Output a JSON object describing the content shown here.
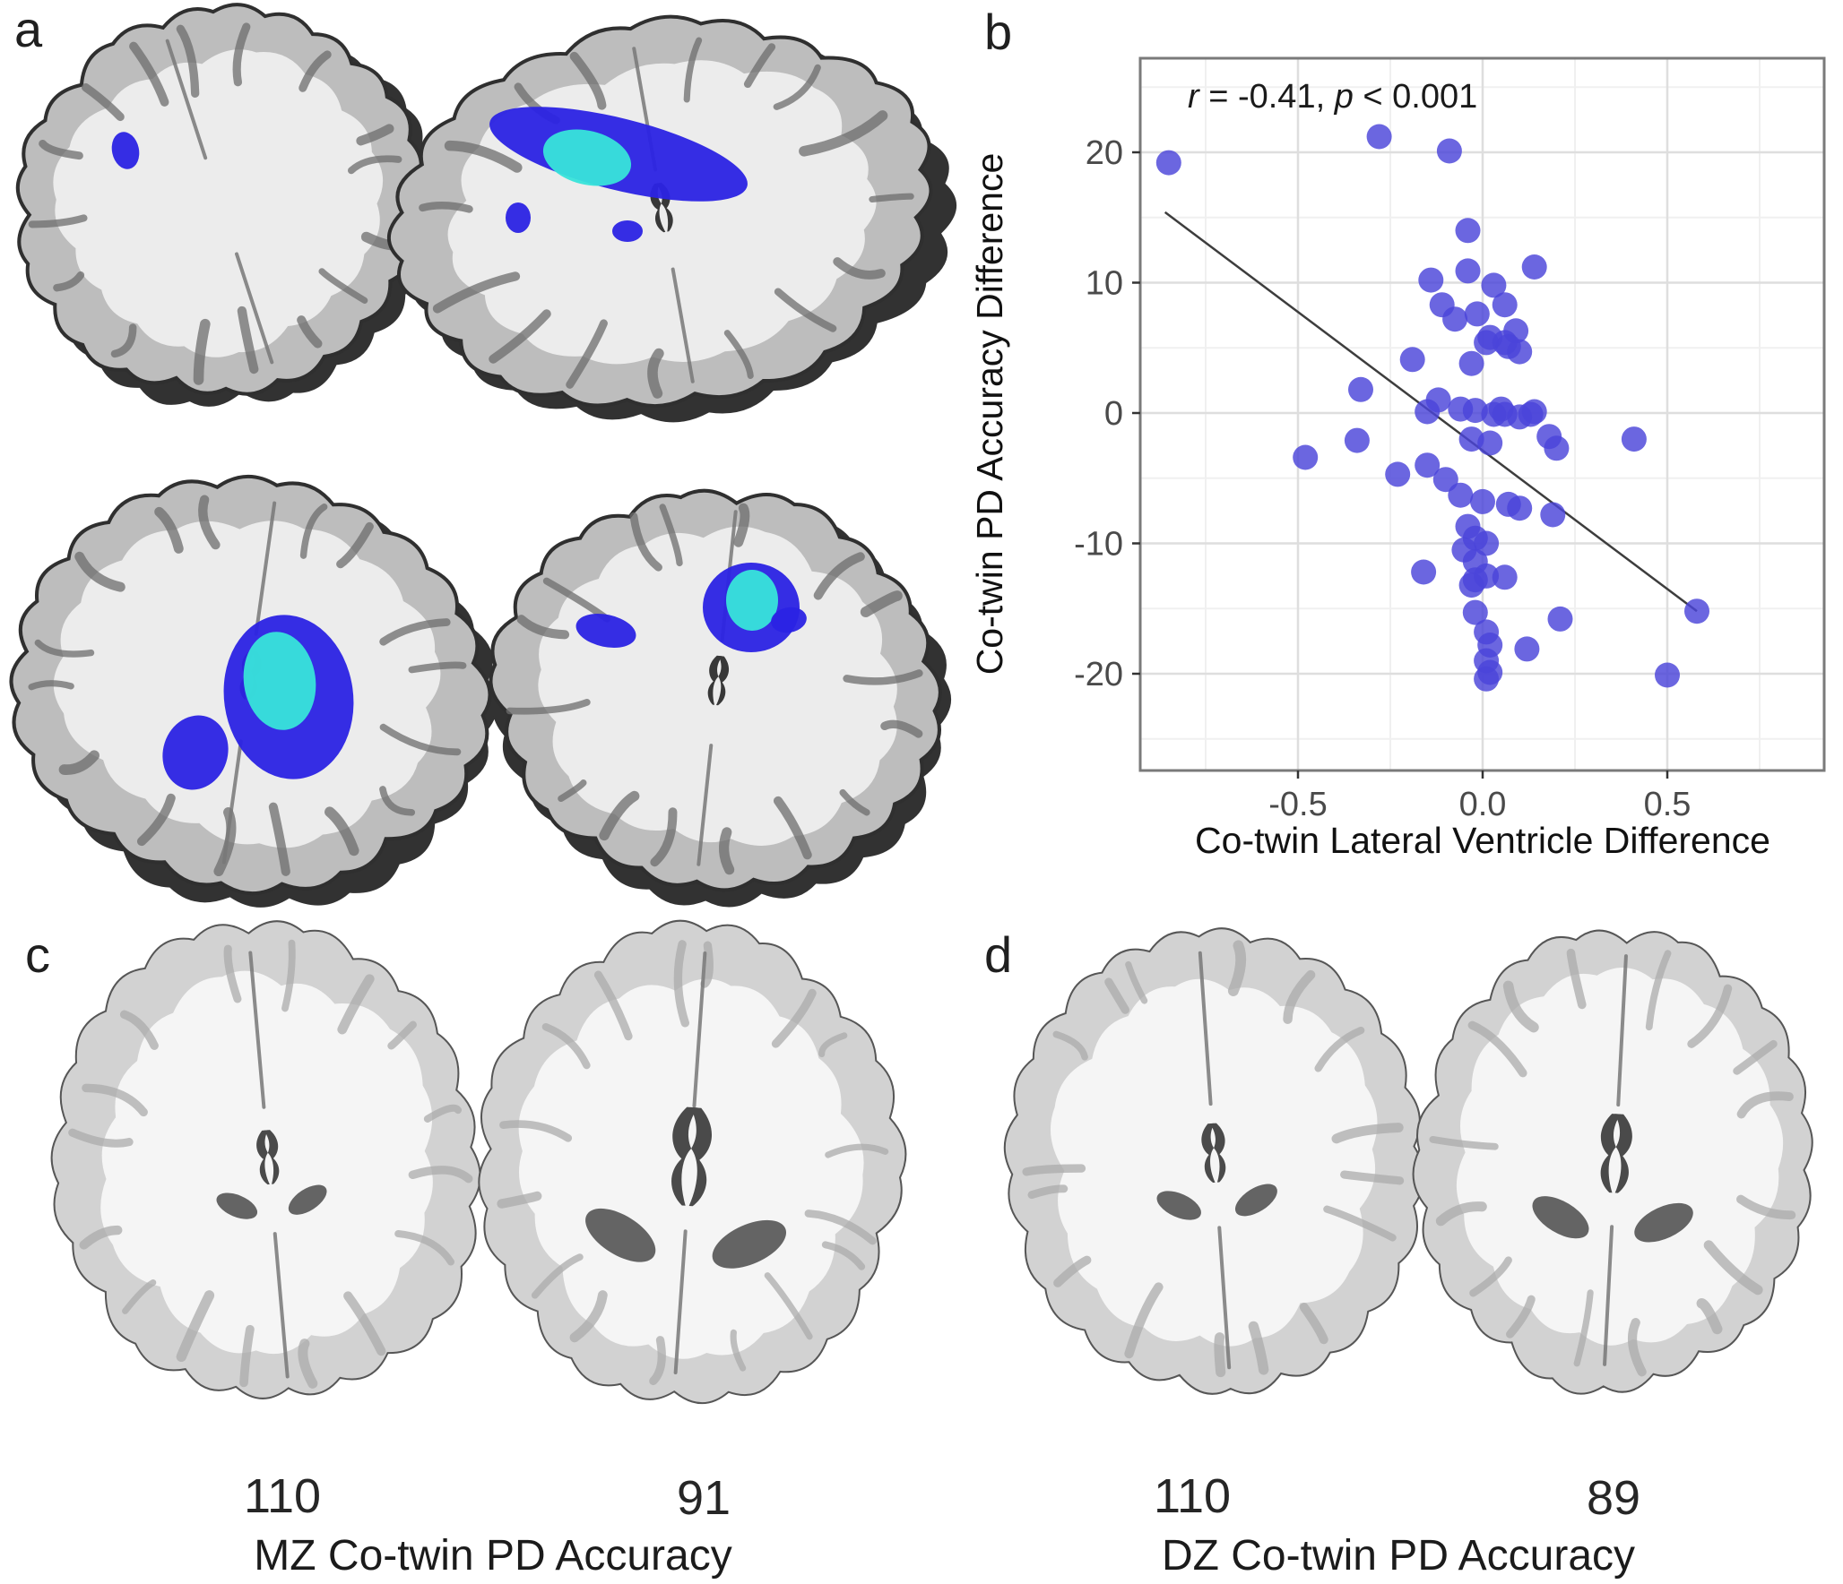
{
  "figure": {
    "panels": [
      {
        "id": "a",
        "label": "a"
      },
      {
        "id": "b",
        "label": "b"
      },
      {
        "id": "c",
        "label": "c",
        "values": [
          "110",
          "91"
        ],
        "caption": "MZ Co-twin PD Accuracy"
      },
      {
        "id": "d",
        "label": "d",
        "values": [
          "110",
          "89"
        ],
        "caption": "DZ Co-twin PD Accuracy"
      }
    ]
  },
  "annotation": {
    "r_sym": "r",
    "r_val": " = -0.41, ",
    "p_sym": "p",
    "p_val": " < 0.001"
  },
  "colors": {
    "cluster_blue": "#2B23E4",
    "cluster_cyan": "#38E4DA",
    "dot": "#4A44D9",
    "regression_line": "#3D3D3D",
    "grid_major": "#DEDEDE",
    "grid_minor": "#F0F0F0",
    "panel_border": "#7A7A7A",
    "tick_text": "#4A4A4A"
  },
  "chart_data": {
    "type": "scatter",
    "title": "",
    "annotation": "r = -0.41, p < 0.001",
    "xlabel": "Co-twin Lateral Ventricle Difference",
    "ylabel": "Co-twin PD Accuracy Difference",
    "xlim": [
      -0.93,
      0.93
    ],
    "ylim": [
      -27.4,
      27.2
    ],
    "xticks": [
      -0.5,
      0.0,
      0.5
    ],
    "yticks": [
      -20,
      -10,
      0,
      10,
      20
    ],
    "xtick_labels": [
      "-0.5",
      "0.0",
      "0.5"
    ],
    "ytick_labels": [
      "-20",
      "-10",
      "0",
      "10",
      "20"
    ],
    "grid": true,
    "legend": false,
    "points": [
      [
        -0.85,
        19.2
      ],
      [
        -0.28,
        21.2
      ],
      [
        -0.09,
        20.1
      ],
      [
        -0.04,
        14.0
      ],
      [
        0.14,
        11.2
      ],
      [
        -0.04,
        10.9
      ],
      [
        -0.14,
        10.2
      ],
      [
        0.03,
        9.8
      ],
      [
        -0.11,
        8.3
      ],
      [
        0.06,
        8.3
      ],
      [
        -0.075,
        7.2
      ],
      [
        -0.015,
        7.6
      ],
      [
        0.09,
        6.3
      ],
      [
        0.02,
        5.8
      ],
      [
        0.06,
        5.4
      ],
      [
        0.01,
        5.4
      ],
      [
        0.07,
        5.1
      ],
      [
        0.1,
        4.7
      ],
      [
        -0.19,
        4.1
      ],
      [
        -0.03,
        3.8
      ],
      [
        -0.33,
        1.8
      ],
      [
        -0.12,
        1.0
      ],
      [
        0.05,
        0.3
      ],
      [
        -0.06,
        0.3
      ],
      [
        -0.02,
        0.2
      ],
      [
        0.03,
        -0.1
      ],
      [
        0.06,
        -0.1
      ],
      [
        0.1,
        -0.3
      ],
      [
        0.14,
        0.1
      ],
      [
        -0.15,
        0.1
      ],
      [
        0.13,
        -0.1
      ],
      [
        -0.48,
        -3.4
      ],
      [
        -0.34,
        -2.1
      ],
      [
        -0.03,
        -2.0
      ],
      [
        0.02,
        -2.3
      ],
      [
        0.18,
        -1.8
      ],
      [
        0.2,
        -2.7
      ],
      [
        0.41,
        -2.0
      ],
      [
        -0.15,
        -4.0
      ],
      [
        -0.23,
        -4.7
      ],
      [
        -0.1,
        -5.1
      ],
      [
        -0.06,
        -6.3
      ],
      [
        0.0,
        -6.8
      ],
      [
        0.07,
        -7.0
      ],
      [
        0.1,
        -7.3
      ],
      [
        0.19,
        -7.8
      ],
      [
        -0.04,
        -8.7
      ],
      [
        -0.02,
        -9.6
      ],
      [
        0.01,
        -10.0
      ],
      [
        -0.05,
        -10.5
      ],
      [
        -0.02,
        -11.4
      ],
      [
        -0.16,
        -12.2
      ],
      [
        0.01,
        -12.5
      ],
      [
        -0.03,
        -13.2
      ],
      [
        0.06,
        -12.6
      ],
      [
        -0.02,
        -12.8
      ],
      [
        -0.02,
        -15.3
      ],
      [
        0.21,
        -15.8
      ],
      [
        0.01,
        -16.8
      ],
      [
        0.02,
        -17.8
      ],
      [
        0.12,
        -18.1
      ],
      [
        0.01,
        -19.0
      ],
      [
        0.02,
        -19.9
      ],
      [
        0.01,
        -20.4
      ],
      [
        0.5,
        -20.1
      ],
      [
        0.58,
        -15.2
      ]
    ],
    "regression_line": {
      "x1": -0.86,
      "y1": 15.4,
      "x2": 0.58,
      "y2": -15.2
    }
  }
}
